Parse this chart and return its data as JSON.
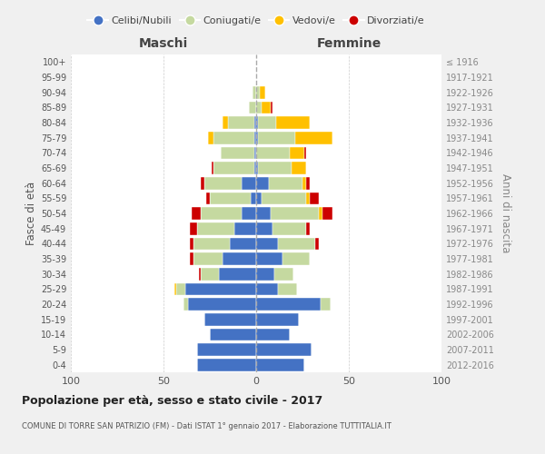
{
  "age_groups": [
    "0-4",
    "5-9",
    "10-14",
    "15-19",
    "20-24",
    "25-29",
    "30-34",
    "35-39",
    "40-44",
    "45-49",
    "50-54",
    "55-59",
    "60-64",
    "65-69",
    "70-74",
    "75-79",
    "80-84",
    "85-89",
    "90-94",
    "95-99",
    "100+"
  ],
  "birth_years": [
    "2012-2016",
    "2007-2011",
    "2002-2006",
    "1997-2001",
    "1992-1996",
    "1987-1991",
    "1982-1986",
    "1977-1981",
    "1972-1976",
    "1967-1971",
    "1962-1966",
    "1957-1961",
    "1952-1956",
    "1947-1951",
    "1942-1946",
    "1937-1941",
    "1932-1936",
    "1927-1931",
    "1922-1926",
    "1917-1921",
    "≤ 1916"
  ],
  "maschi": {
    "celibi": [
      32,
      32,
      25,
      28,
      37,
      38,
      20,
      18,
      14,
      12,
      8,
      3,
      8,
      1,
      1,
      1,
      1,
      0,
      0,
      0,
      0
    ],
    "coniugati": [
      0,
      0,
      0,
      0,
      2,
      5,
      10,
      16,
      20,
      20,
      22,
      22,
      20,
      22,
      18,
      22,
      14,
      4,
      2,
      0,
      0
    ],
    "vedovi": [
      0,
      0,
      0,
      0,
      0,
      1,
      0,
      0,
      0,
      0,
      0,
      0,
      0,
      0,
      0,
      3,
      3,
      0,
      0,
      0,
      0
    ],
    "divorziati": [
      0,
      0,
      0,
      0,
      0,
      0,
      1,
      2,
      2,
      4,
      5,
      2,
      2,
      1,
      0,
      0,
      0,
      0,
      0,
      0,
      0
    ]
  },
  "femmine": {
    "nubili": [
      26,
      30,
      18,
      23,
      35,
      12,
      10,
      14,
      12,
      9,
      8,
      3,
      7,
      1,
      0,
      1,
      1,
      0,
      0,
      0,
      0
    ],
    "coniugate": [
      0,
      0,
      0,
      0,
      5,
      10,
      10,
      15,
      20,
      18,
      26,
      24,
      18,
      18,
      18,
      20,
      10,
      3,
      2,
      0,
      0
    ],
    "vedove": [
      0,
      0,
      0,
      0,
      0,
      0,
      0,
      0,
      0,
      0,
      2,
      2,
      2,
      8,
      8,
      20,
      18,
      5,
      3,
      0,
      0
    ],
    "divorziate": [
      0,
      0,
      0,
      0,
      0,
      0,
      0,
      0,
      2,
      2,
      5,
      5,
      2,
      0,
      1,
      0,
      0,
      1,
      0,
      0,
      0
    ]
  },
  "colors": {
    "celibi": "#4472c4",
    "coniugati": "#c5d9a0",
    "vedovi": "#ffc000",
    "divorziati": "#cc0000"
  },
  "title": "Popolazione per età, sesso e stato civile - 2017",
  "subtitle": "COMUNE DI TORRE SAN PATRIZIO (FM) - Dati ISTAT 1° gennaio 2017 - Elaborazione TUTTITALIA.IT",
  "ylabel_left": "Fasce di età",
  "ylabel_right": "Anni di nascita",
  "xlabel_left": "Maschi",
  "xlabel_right": "Femmine",
  "xlim": 100,
  "legend_labels": [
    "Celibi/Nubili",
    "Coniugati/e",
    "Vedovi/e",
    "Divorziati/e"
  ],
  "background_color": "#f0f0f0",
  "plot_bg_color": "#ffffff"
}
